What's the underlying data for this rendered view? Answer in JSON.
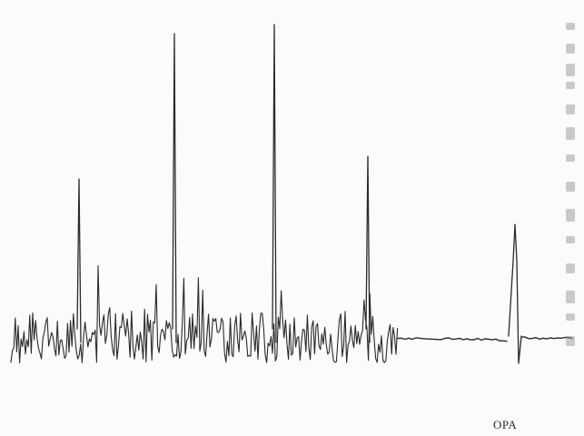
{
  "chart_data": {
    "type": "line",
    "title": "",
    "xlabel": "",
    "ylabel": "",
    "grid": false,
    "axes_drawn": false,
    "line_color": "#2a2a2a",
    "baseline": 0,
    "ylim": [
      -1.0,
      3.6
    ],
    "peaks": [
      {
        "x": 87,
        "value": 1.75
      },
      {
        "x": 192,
        "value": 3.35
      },
      {
        "x": 302,
        "value": 3.45
      },
      {
        "x": 405,
        "value": 2.0
      },
      {
        "x": 567,
        "value": 1.25
      }
    ],
    "segments": [
      {
        "kind": "noisy",
        "x_start": 12,
        "x_end": 438
      },
      {
        "kind": "flat",
        "x_start": 438,
        "x_end": 560
      },
      {
        "kind": "flat",
        "x_start": 574,
        "x_end": 632
      }
    ],
    "annotations": [
      {
        "text": "OPA",
        "x": 560
      }
    ]
  }
}
